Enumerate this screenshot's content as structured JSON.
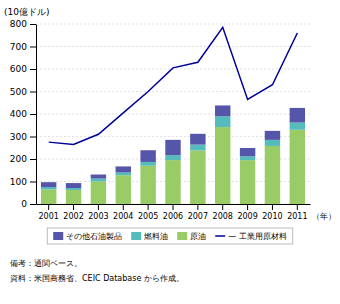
{
  "chart_data": {
    "type": "bar",
    "ylabel": "(10億ドル)",
    "xlabel": "（年）",
    "categories": [
      "2001",
      "2002",
      "2003",
      "2004",
      "2005",
      "2006",
      "2007",
      "2008",
      "2009",
      "2010",
      "2011"
    ],
    "series": [
      {
        "name": "原油",
        "color": "#99cc66",
        "values": [
          65,
          62,
          100,
          128,
          170,
          195,
          238,
          342,
          195,
          258,
          330
        ]
      },
      {
        "name": "燃料油",
        "color": "#55bbbb",
        "values": [
          10,
          9,
          13,
          12,
          17,
          22,
          26,
          48,
          17,
          27,
          32
        ]
      },
      {
        "name": "その他石油製品",
        "color": "#5555aa",
        "values": [
          22,
          22,
          18,
          27,
          52,
          68,
          48,
          48,
          37,
          40,
          65
        ]
      },
      {
        "name": "— 工業用原材料",
        "type": "line",
        "color": "#000099",
        "values": [
          275,
          265,
          310,
          405,
          500,
          605,
          630,
          785,
          465,
          530,
          760
        ]
      }
    ],
    "stacked": true,
    "ylim": [
      0,
      800
    ],
    "yticks": [
      0,
      100,
      200,
      300,
      400,
      500,
      600,
      700,
      800
    ],
    "grid": true,
    "legend": "bottom",
    "annotations": [
      "備考：通関ベース。",
      "資料：米国商務省、CEIC Database から作成。"
    ]
  }
}
